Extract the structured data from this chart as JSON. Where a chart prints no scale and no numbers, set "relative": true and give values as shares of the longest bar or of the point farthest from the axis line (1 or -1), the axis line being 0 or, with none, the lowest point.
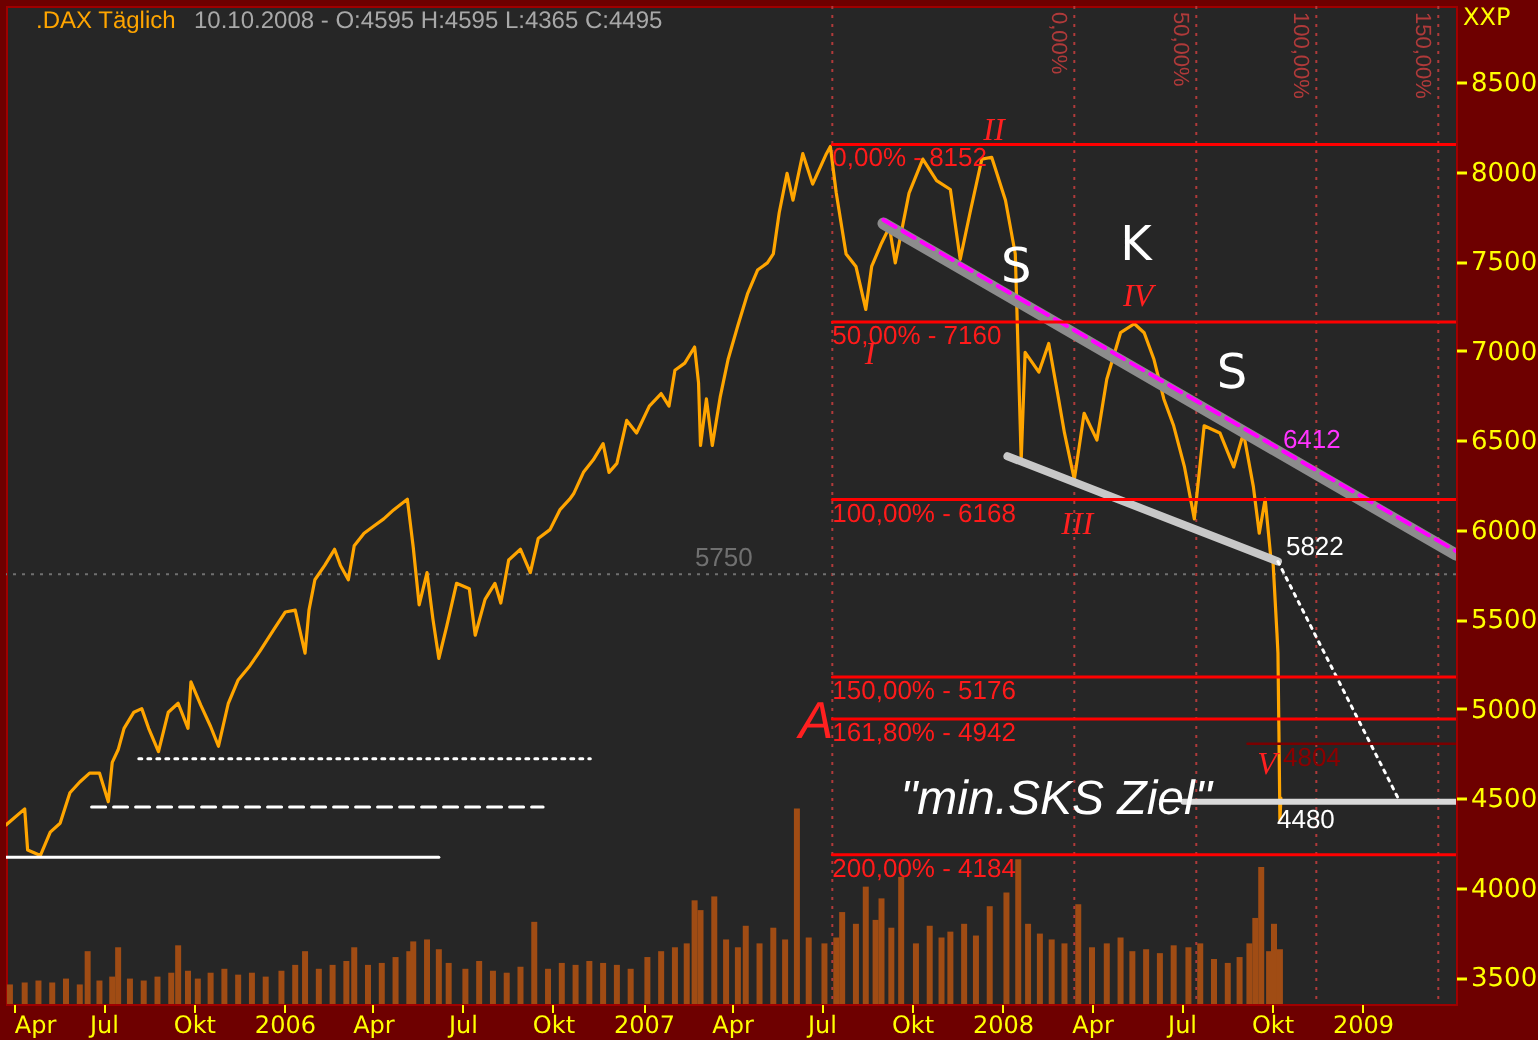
{
  "chart_data": [
    {
      "type": "line",
      "title": ".DAX Täglich",
      "subtitle": "10.10.2008 - O:4595 H:4595 L:4365 C:4495",
      "ylabel": "XXP",
      "xlim": [
        "2005-03-24",
        "2009-04-06"
      ],
      "xticks": [
        {
          "value": "2005-04-01",
          "label": "Apr"
        },
        {
          "value": "2005-07-01",
          "label": "Jul"
        },
        {
          "value": "2005-10-01",
          "label": "Okt"
        },
        {
          "value": "2006-01-01",
          "label": "2006"
        },
        {
          "value": "2006-04-01",
          "label": "Apr"
        },
        {
          "value": "2006-07-01",
          "label": "Jul"
        },
        {
          "value": "2006-10-01",
          "label": "Okt"
        },
        {
          "value": "2007-01-01",
          "label": "2007"
        },
        {
          "value": "2007-04-01",
          "label": "Apr"
        },
        {
          "value": "2007-07-01",
          "label": "Jul"
        },
        {
          "value": "2007-10-01",
          "label": "Okt"
        },
        {
          "value": "2008-01-01",
          "label": "2008"
        },
        {
          "value": "2008-04-01",
          "label": "Apr"
        },
        {
          "value": "2008-07-01",
          "label": "Jul"
        },
        {
          "value": "2008-10-01",
          "label": "Okt"
        },
        {
          "value": "2009-01-01",
          "label": "2009"
        }
      ],
      "ylim": [
        3350,
        8925
      ],
      "yticks": [
        3500,
        4000,
        4500,
        5000,
        5500,
        6000,
        6500,
        7000,
        7500,
        8000,
        8500
      ],
      "series": [
        {
          "color": "#ffa500",
          "x": [
            "2005-03-24",
            "2005-04-12",
            "2005-04-15",
            "2005-04-28",
            "2005-05-08",
            "2005-05-18",
            "2005-05-28",
            "2005-06-07",
            "2005-06-17",
            "2005-06-27",
            "2005-07-06",
            "2005-07-10",
            "2005-07-16",
            "2005-07-22",
            "2005-08-01",
            "2005-08-09",
            "2005-08-16",
            "2005-08-26",
            "2005-09-05",
            "2005-09-15",
            "2005-09-25",
            "2005-09-28",
            "2005-10-08",
            "2005-10-18",
            "2005-10-26",
            "2005-11-05",
            "2005-11-15",
            "2005-11-27",
            "2005-12-07",
            "2005-12-21",
            "2006-01-02",
            "2006-01-12",
            "2006-01-22",
            "2006-01-26",
            "2006-02-01",
            "2006-02-11",
            "2006-02-21",
            "2006-02-27",
            "2006-03-07",
            "2006-03-13",
            "2006-03-23",
            "2006-04-02",
            "2006-04-12",
            "2006-04-22",
            "2006-05-06",
            "2006-05-12",
            "2006-05-18",
            "2006-05-26",
            "2006-06-01",
            "2006-06-07",
            "2006-06-15",
            "2006-06-25",
            "2006-07-08",
            "2006-07-14",
            "2006-07-24",
            "2006-08-03",
            "2006-08-09",
            "2006-08-17",
            "2006-08-29",
            "2006-09-08",
            "2006-09-16",
            "2006-09-28",
            "2006-10-08",
            "2006-10-18",
            "2006-10-22",
            "2006-11-01",
            "2006-11-11",
            "2006-11-21",
            "2006-11-27",
            "2006-12-05",
            "2006-12-15",
            "2006-12-25",
            "2007-01-07",
            "2007-01-19",
            "2007-01-27",
            "2007-02-02",
            "2007-02-12",
            "2007-02-22",
            "2007-02-26",
            "2007-02-28",
            "2007-03-06",
            "2007-03-12",
            "2007-03-20",
            "2007-03-28",
            "2007-04-07",
            "2007-04-17",
            "2007-04-27",
            "2007-05-07",
            "2007-05-13",
            "2007-05-19",
            "2007-05-27",
            "2007-06-02",
            "2007-06-12",
            "2007-06-22",
            "2007-07-06",
            "2007-07-10",
            "2007-07-16",
            "2007-07-26",
            "2007-08-05",
            "2007-08-15",
            "2007-08-21",
            "2007-08-31",
            "2007-09-08",
            "2007-09-14",
            "2007-09-28",
            "2007-10-12",
            "2007-10-26",
            "2007-11-09",
            "2007-11-19",
            "2007-11-29",
            "2007-12-11",
            "2007-12-21",
            "2008-01-04",
            "2008-01-14",
            "2008-01-20",
            "2008-01-24",
            "2008-02-07",
            "2008-02-17",
            "2008-02-27",
            "2008-03-04",
            "2008-03-14",
            "2008-03-24",
            "2008-04-06",
            "2008-04-16",
            "2008-04-30",
            "2008-05-14",
            "2008-05-24",
            "2008-06-03",
            "2008-06-13",
            "2008-06-23",
            "2008-07-04",
            "2008-07-14",
            "2008-07-24",
            "2008-08-09",
            "2008-08-23",
            "2008-09-02",
            "2008-09-12",
            "2008-09-18",
            "2008-09-24",
            "2008-09-30",
            "2008-10-02",
            "2008-10-06",
            "2008-10-07",
            "2008-10-08",
            "2008-10-09",
            "2008-10-10"
          ],
          "values": [
            4350,
            4440,
            4210,
            4180,
            4310,
            4360,
            4530,
            4590,
            4640,
            4640,
            4480,
            4700,
            4770,
            4890,
            4980,
            5000,
            4890,
            4760,
            4980,
            5030,
            4890,
            5150,
            5020,
            4900,
            4790,
            5030,
            5160,
            5240,
            5320,
            5440,
            5540,
            5550,
            5310,
            5550,
            5720,
            5800,
            5890,
            5800,
            5720,
            5910,
            5980,
            6020,
            6060,
            6110,
            6170,
            5900,
            5580,
            5760,
            5500,
            5280,
            5460,
            5700,
            5670,
            5410,
            5610,
            5700,
            5590,
            5830,
            5890,
            5760,
            5950,
            6000,
            6110,
            6170,
            6200,
            6320,
            6390,
            6480,
            6320,
            6370,
            6610,
            6540,
            6690,
            6760,
            6690,
            6890,
            6930,
            7020,
            6820,
            6470,
            6730,
            6470,
            6740,
            6950,
            7140,
            7320,
            7450,
            7490,
            7540,
            7770,
            7990,
            7840,
            8100,
            7930,
            8100,
            8140,
            7880,
            7540,
            7470,
            7230,
            7470,
            7600,
            7690,
            7490,
            7880,
            8070,
            7950,
            7900,
            7510,
            7770,
            8070,
            8080,
            7840,
            7540,
            6390,
            6990,
            6880,
            7040,
            6730,
            6540,
            6280,
            6650,
            6500,
            6840,
            7100,
            7150,
            7100,
            6950,
            6730,
            6580,
            6350,
            6060,
            6580,
            6540,
            6350,
            6540,
            6240,
            5980,
            6170,
            5830,
            5820,
            5420,
            5310,
            4870,
            4380,
            4500
          ]
        },
        {
          "color": "#8c8c8c",
          "x": [
            "2007-09-02",
            "2009-04-06"
          ],
          "values": [
            7710,
            5860
          ]
        },
        {
          "color": "#ff00ff",
          "x": [
            "2007-09-02",
            "2009-04-06"
          ],
          "values": [
            7730,
            5880
          ],
          "line_style": "dashed"
        },
        {
          "color": "#c8c8c8",
          "x": [
            "2008-01-06",
            "2008-10-07"
          ],
          "values": [
            6410,
            5822
          ]
        },
        {
          "color": "#ffffff",
          "x": [
            "2008-10-07",
            "2009-02-08"
          ],
          "values": [
            5822,
            4480
          ],
          "line_style": "dotted"
        },
        {
          "color": "#d9d9d9",
          "x": [
            "2008-07-03",
            "2009-04-06"
          ],
          "values": [
            4480,
            4480
          ]
        },
        {
          "color": "#ff0000",
          "x": [
            "2007-07-12",
            "2009-04-06"
          ],
          "values": [
            8152,
            8152
          ]
        },
        {
          "color": "#ff0000",
          "x": [
            "2007-07-12",
            "2009-04-06"
          ],
          "values": [
            7160,
            7160
          ]
        },
        {
          "color": "#ff0000",
          "x": [
            "2007-07-12",
            "2009-04-06"
          ],
          "values": [
            6168,
            6168
          ]
        },
        {
          "color": "#ff0000",
          "x": [
            "2007-07-12",
            "2009-04-06"
          ],
          "values": [
            5176,
            5176
          ]
        },
        {
          "color": "#ff0000",
          "x": [
            "2007-07-12",
            "2009-04-06"
          ],
          "values": [
            4942,
            4942
          ]
        },
        {
          "color": "#ff0000",
          "x": [
            "2007-07-12",
            "2009-04-06"
          ],
          "values": [
            4184,
            4184
          ]
        },
        {
          "color": "#7a0000",
          "x": [
            "2008-09-06",
            "2009-04-06"
          ],
          "values": [
            4804,
            4804
          ]
        },
        {
          "color": "#ffffff",
          "x": [
            "2005-03-24",
            "2006-06-07"
          ],
          "values": [
            4170,
            4170
          ]
        },
        {
          "color": "#ffffff",
          "x": [
            "2005-06-19",
            "2006-09-21"
          ],
          "values": [
            4450,
            4450
          ],
          "line_style": "dashed"
        },
        {
          "color": "#ffffff",
          "x": [
            "2005-08-06",
            "2006-11-08"
          ],
          "values": [
            4720,
            4720
          ],
          "line_style": "dotted"
        }
      ],
      "ref_lines": [
        {
          "axis": "x",
          "value": "2007-07-12",
          "color": "#b03a3a",
          "line_style": "dotted"
        },
        {
          "axis": "x",
          "value": "2008-03-14",
          "label": "0,00%",
          "color": "#b03a3a",
          "line_style": "dotted"
        },
        {
          "axis": "x",
          "value": "2008-07-16",
          "label": "50,00%",
          "color": "#b03a3a",
          "line_style": "dotted"
        },
        {
          "axis": "x",
          "value": "2008-11-15",
          "label": "100,00%",
          "color": "#b03a3a",
          "line_style": "dotted"
        },
        {
          "axis": "x",
          "value": "2009-03-19",
          "label": "150,00%",
          "color": "#b03a3a",
          "line_style": "dotted"
        },
        {
          "axis": "y",
          "value": 5750,
          "label": "5750",
          "color": "#707070",
          "line_style": "dotted"
        }
      ],
      "annotations": [
        {
          "text": "0,00% - 8152",
          "x": "2007-07-12",
          "y": 8152
        },
        {
          "text": "50,00% - 7160",
          "x": "2007-07-12",
          "y": 7160
        },
        {
          "text": "100,00% - 6168",
          "x": "2007-07-12",
          "y": 6168
        },
        {
          "text": "150,00% - 5176",
          "x": "2007-07-12",
          "y": 5176
        },
        {
          "text": "161,80% - 4942",
          "x": "2007-07-12",
          "y": 4942
        },
        {
          "text": "200,00% - 4184",
          "x": "2007-07-12",
          "y": 4184
        },
        {
          "text": "4804",
          "x": "2008-10-06",
          "y": 4804
        },
        {
          "text": "4480",
          "x": "2008-10-06",
          "y": 4480
        },
        {
          "text": "5822",
          "x": "2008-10-07",
          "y": 5822
        },
        {
          "text": "6412",
          "x": "2008-10-10",
          "y": 6412
        },
        {
          "text": "S",
          "x": "2008-01-15",
          "y": 7460
        },
        "K",
        "S",
        "I",
        "II",
        {
          "text": "III",
          "x": "2008-03-17",
          "y": 6030
        },
        "IV",
        {
          "text": "V",
          "x": "2008-09-26",
          "y": 4690
        },
        "\"min.SKS Ziel\"",
        "A"
      ]
    },
    {
      "type": "bar",
      "relative": true,
      "color": "#a04c14",
      "xlim": [
        "2005-03-24",
        "2009-04-06"
      ],
      "x": [
        "2005-03-28",
        "2005-04-12",
        "2005-04-26",
        "2005-05-10",
        "2005-05-24",
        "2005-06-07",
        "2005-06-15",
        "2005-06-27",
        "2005-07-10",
        "2005-07-16",
        "2005-07-28",
        "2005-08-11",
        "2005-08-25",
        "2005-09-08",
        "2005-09-15",
        "2005-09-25",
        "2005-10-05",
        "2005-10-18",
        "2005-11-01",
        "2005-11-15",
        "2005-11-29",
        "2005-12-13",
        "2005-12-29",
        "2006-01-12",
        "2006-01-22",
        "2006-02-05",
        "2006-02-19",
        "2006-03-05",
        "2006-03-13",
        "2006-03-27",
        "2006-04-10",
        "2006-04-24",
        "2006-05-08",
        "2006-05-12",
        "2006-05-26",
        "2006-06-07",
        "2006-06-17",
        "2006-07-04",
        "2006-07-18",
        "2006-08-01",
        "2006-08-15",
        "2006-08-29",
        "2006-09-12",
        "2006-09-26",
        "2006-10-10",
        "2006-10-24",
        "2006-11-07",
        "2006-11-21",
        "2006-12-05",
        "2006-12-19",
        "2007-01-05",
        "2007-01-19",
        "2007-02-02",
        "2007-02-14",
        "2007-02-22",
        "2007-02-28",
        "2007-03-14",
        "2007-03-26",
        "2007-04-07",
        "2007-04-15",
        "2007-04-29",
        "2007-05-13",
        "2007-05-25",
        "2007-06-06",
        "2007-06-18",
        "2007-07-04",
        "2007-07-16",
        "2007-07-22",
        "2007-08-05",
        "2007-08-15",
        "2007-08-25",
        "2007-08-31",
        "2007-09-10",
        "2007-09-20",
        "2007-10-05",
        "2007-10-19",
        "2007-10-31",
        "2007-11-09",
        "2007-11-23",
        "2007-12-05",
        "2007-12-19",
        "2008-01-05",
        "2008-01-17",
        "2008-01-27",
        "2008-02-08",
        "2008-02-20",
        "2008-03-04",
        "2008-03-18",
        "2008-04-01",
        "2008-04-16",
        "2008-04-30",
        "2008-05-12",
        "2008-05-26",
        "2008-06-09",
        "2008-06-23",
        "2008-07-08",
        "2008-07-20",
        "2008-08-03",
        "2008-08-17",
        "2008-08-29",
        "2008-09-08",
        "2008-09-14",
        "2008-09-20",
        "2008-09-28",
        "2008-10-03",
        "2008-10-09"
      ],
      "values": [
        0.1,
        0.11,
        0.12,
        0.11,
        0.13,
        0.1,
        0.27,
        0.12,
        0.14,
        0.29,
        0.13,
        0.12,
        0.14,
        0.16,
        0.3,
        0.17,
        0.13,
        0.16,
        0.18,
        0.15,
        0.16,
        0.14,
        0.17,
        0.2,
        0.27,
        0.18,
        0.2,
        0.22,
        0.29,
        0.2,
        0.21,
        0.24,
        0.27,
        0.32,
        0.33,
        0.28,
        0.21,
        0.18,
        0.22,
        0.17,
        0.16,
        0.19,
        0.42,
        0.18,
        0.21,
        0.2,
        0.22,
        0.21,
        0.2,
        0.18,
        0.24,
        0.27,
        0.29,
        0.31,
        0.53,
        0.48,
        0.55,
        0.33,
        0.29,
        0.4,
        0.31,
        0.39,
        0.33,
        1.0,
        0.34,
        0.31,
        0.34,
        0.47,
        0.41,
        0.6,
        0.43,
        0.54,
        0.39,
        0.65,
        0.31,
        0.4,
        0.34,
        0.37,
        0.41,
        0.35,
        0.5,
        0.57,
        0.74,
        0.41,
        0.36,
        0.33,
        0.31,
        0.51,
        0.29,
        0.31,
        0.34,
        0.27,
        0.28,
        0.26,
        0.3,
        0.29,
        0.31,
        0.23,
        0.21,
        0.24,
        0.31,
        0.44,
        0.7,
        0.27,
        0.41,
        0.28
      ]
    }
  ]
}
